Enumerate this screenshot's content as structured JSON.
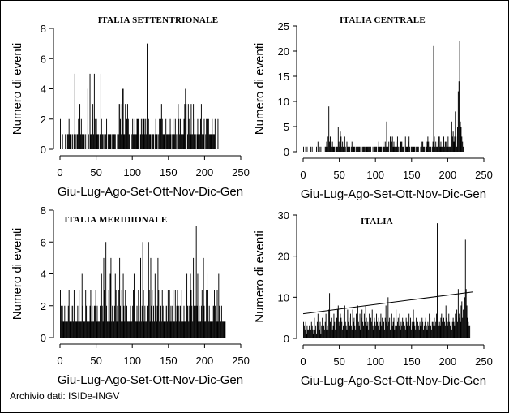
{
  "source_note": "Archivio dati: ISIDe-INGV",
  "chart_data": [
    {
      "type": "bar",
      "title": "ITALIA SETTENTRIONALE",
      "xlabel": "Giu-Lug-Ago-Set-Ott-Nov-Dic-Gen",
      "ylabel": "Numero di eventi",
      "xlim": [
        0,
        250
      ],
      "ylim": [
        0,
        8
      ],
      "xticks": [
        0,
        50,
        100,
        150,
        200,
        250
      ],
      "yticks": [
        0,
        2,
        4,
        6,
        8
      ],
      "values": [
        2,
        0,
        0,
        1,
        0,
        0,
        0,
        1,
        1,
        0,
        1,
        1,
        2,
        1,
        1,
        1,
        0,
        1,
        0,
        1,
        5,
        1,
        0,
        1,
        1,
        2,
        3,
        3,
        1,
        2,
        1,
        1,
        1,
        1,
        0,
        1,
        0,
        0,
        4,
        1,
        0,
        5,
        1,
        1,
        2,
        3,
        1,
        5,
        2,
        1,
        2,
        1,
        1,
        1,
        0,
        1,
        5,
        2,
        1,
        1,
        0,
        1,
        1,
        1,
        2,
        0,
        1,
        1,
        1,
        1,
        1,
        0,
        1,
        1,
        1,
        1,
        1,
        0,
        0,
        1,
        3,
        1,
        3,
        2,
        1,
        3,
        4,
        4,
        1,
        1,
        3,
        2,
        2,
        3,
        2,
        1,
        1,
        0,
        0,
        1,
        2,
        1,
        1,
        2,
        1,
        1,
        2,
        2,
        2,
        1,
        0,
        1,
        2,
        1,
        2,
        2,
        2,
        1,
        2,
        1,
        7,
        1,
        2,
        1,
        1,
        1,
        0,
        1,
        1,
        1,
        0,
        1,
        2,
        1,
        1,
        0,
        1,
        2,
        3,
        2,
        3,
        2,
        1,
        1,
        1,
        0,
        2,
        1,
        1,
        1,
        1,
        1,
        2,
        1,
        0,
        1,
        2,
        1,
        1,
        2,
        1,
        0,
        1,
        3,
        2,
        1,
        2,
        1,
        1,
        1,
        1,
        2,
        3,
        4,
        3,
        0,
        1,
        3,
        2,
        1,
        1,
        3,
        1,
        1,
        3,
        1,
        2,
        1,
        0,
        1,
        2,
        1,
        1,
        1,
        2,
        3,
        1,
        1,
        1,
        2,
        0,
        1,
        2,
        1,
        2,
        2,
        1,
        1,
        1,
        1,
        2,
        1,
        1,
        1,
        2,
        0,
        0,
        0,
        2
      ]
    },
    {
      "type": "bar",
      "title": "ITALIA CENTRALE",
      "xlabel": "Giu-Lug-Ago-Set-Ott-Nov-Dic-Gen",
      "ylabel": "Numero di eventi",
      "xlim": [
        0,
        250
      ],
      "ylim": [
        0,
        25
      ],
      "xticks": [
        0,
        50,
        100,
        150,
        200,
        250
      ],
      "yticks": [
        0,
        5,
        10,
        15,
        20,
        25
      ],
      "values": [
        1,
        0,
        0,
        1,
        0,
        1,
        0,
        0,
        0,
        1,
        1,
        0,
        1,
        0,
        0,
        0,
        0,
        0,
        1,
        0,
        2,
        0,
        1,
        0,
        1,
        0,
        0,
        1,
        0,
        0,
        1,
        1,
        2,
        1,
        3,
        9,
        2,
        3,
        2,
        1,
        2,
        1,
        1,
        1,
        0,
        1,
        1,
        1,
        5,
        2,
        1,
        4,
        3,
        1,
        2,
        1,
        1,
        3,
        1,
        0,
        2,
        1,
        1,
        1,
        1,
        0,
        1,
        2,
        1,
        1,
        1,
        1,
        0,
        1,
        2,
        1,
        1,
        1,
        1,
        0,
        1,
        0,
        1,
        1,
        1,
        1,
        0,
        1,
        1,
        1,
        1,
        1,
        1,
        1,
        0,
        0,
        1,
        0,
        1,
        1,
        1,
        1,
        0,
        1,
        2,
        1,
        1,
        1,
        1,
        0,
        2,
        1,
        1,
        2,
        1,
        6,
        1,
        1,
        2,
        0,
        3,
        1,
        2,
        3,
        1,
        2,
        1,
        1,
        2,
        1,
        3,
        1,
        0,
        1,
        2,
        2,
        2,
        1,
        1,
        1,
        0,
        3,
        1,
        1,
        1,
        2,
        3,
        1,
        0,
        1,
        1,
        1,
        1,
        1,
        1,
        0,
        1,
        1,
        1,
        1,
        0,
        0,
        1,
        1,
        2,
        2,
        1,
        1,
        0,
        1,
        1,
        2,
        3,
        2,
        1,
        1,
        1,
        0,
        1,
        2,
        21,
        3,
        1,
        2,
        1,
        1,
        2,
        3,
        3,
        1,
        2,
        1,
        1,
        2,
        3,
        1,
        2,
        2,
        1,
        1,
        3,
        1,
        1,
        1,
        4,
        6,
        3,
        4,
        2,
        3,
        8,
        3,
        1,
        5,
        12,
        14,
        22,
        6,
        5,
        3,
        2,
        1,
        1
      ]
    },
    {
      "type": "bar",
      "title": "ITALIA MERIDIONALE",
      "xlabel": "Giu-Lug-Ago-Set-Ott-Nov-Dic-Gen",
      "ylabel": "Numero di eventi",
      "xlim": [
        0,
        250
      ],
      "ylim": [
        0,
        8
      ],
      "xticks": [
        0,
        50,
        100,
        150,
        200,
        250
      ],
      "yticks": [
        0,
        2,
        4,
        6,
        8
      ],
      "values": [
        3,
        2,
        1,
        2,
        1,
        1,
        2,
        1,
        1,
        1,
        1,
        2,
        3,
        1,
        1,
        2,
        1,
        2,
        1,
        3,
        1,
        1,
        1,
        1,
        2,
        1,
        3,
        1,
        1,
        1,
        4,
        2,
        1,
        1,
        1,
        3,
        2,
        1,
        1,
        1,
        1,
        2,
        3,
        1,
        2,
        1,
        1,
        2,
        2,
        3,
        1,
        2,
        1,
        1,
        1,
        2,
        3,
        4,
        2,
        1,
        5,
        3,
        1,
        6,
        2,
        1,
        1,
        3,
        1,
        4,
        5,
        1,
        2,
        1,
        1,
        2,
        4,
        3,
        1,
        2,
        1,
        3,
        5,
        2,
        1,
        3,
        1,
        4,
        2,
        1,
        3,
        1,
        2,
        1,
        1,
        1,
        1,
        2,
        1,
        1,
        2,
        3,
        4,
        2,
        1,
        1,
        2,
        1,
        3,
        2,
        1,
        5,
        1,
        2,
        6,
        3,
        1,
        2,
        1,
        1,
        2,
        1,
        6,
        3,
        1,
        5,
        2,
        3,
        1,
        2,
        1,
        4,
        2,
        1,
        2,
        5,
        3,
        1,
        1,
        2,
        1,
        3,
        2,
        1,
        1,
        2,
        1,
        2,
        1,
        3,
        2,
        3,
        1,
        2,
        1,
        2,
        3,
        1,
        1,
        3,
        1,
        2,
        3,
        1,
        2,
        1,
        2,
        1,
        3,
        1,
        1,
        2,
        1,
        1,
        3,
        4,
        2,
        1,
        2,
        1,
        4,
        3,
        2,
        1,
        5,
        2,
        1,
        2,
        7,
        2,
        4,
        1,
        2,
        1,
        1,
        2,
        3,
        1,
        5,
        2,
        1,
        1,
        3,
        4,
        3,
        1,
        2,
        1,
        1,
        1,
        2,
        1,
        2,
        3,
        2,
        1,
        1,
        3,
        1,
        4,
        2,
        1,
        1,
        2,
        1,
        1,
        1,
        1,
        1
      ]
    },
    {
      "type": "bar",
      "title": "ITALIA",
      "xlabel": "Giu-Lug-Ago-Set-Ott-Nov-Dic-Gen",
      "ylabel": "Numero di eventi",
      "xlim": [
        0,
        250
      ],
      "ylim": [
        0,
        30
      ],
      "xticks": [
        0,
        50,
        100,
        150,
        200,
        250
      ],
      "yticks": [
        0,
        10,
        20,
        30
      ],
      "trendline": {
        "x": [
          0,
          235
        ],
        "y": [
          6.0,
          11.3
        ]
      },
      "values": [
        4,
        3,
        2,
        4,
        1,
        3,
        2,
        2,
        3,
        1,
        2,
        4,
        3,
        2,
        1,
        5,
        2,
        3,
        1,
        4,
        6,
        3,
        2,
        4,
        1,
        3,
        5,
        7,
        3,
        2,
        4,
        6,
        2,
        3,
        2,
        7,
        11,
        4,
        3,
        5,
        2,
        3,
        6,
        4,
        2,
        3,
        5,
        7,
        8,
        4,
        3,
        6,
        5,
        4,
        2,
        3,
        6,
        8,
        4,
        3,
        2,
        7,
        4,
        5,
        3,
        6,
        3,
        2,
        7,
        4,
        5,
        3,
        2,
        6,
        4,
        8,
        4,
        3,
        6,
        2,
        5,
        7,
        4,
        3,
        6,
        4,
        8,
        5,
        3,
        4,
        2,
        6,
        3,
        5,
        4,
        7,
        3,
        2,
        5,
        4,
        3,
        6,
        4,
        3,
        5,
        2,
        4,
        6,
        3,
        5,
        3,
        4,
        2,
        5,
        8,
        4,
        3,
        10,
        4,
        5,
        2,
        4,
        6,
        3,
        4,
        5,
        2,
        3,
        7,
        3,
        4,
        5,
        3,
        6,
        2,
        4,
        3,
        5,
        4,
        6,
        3,
        2,
        5,
        4,
        3,
        4,
        6,
        3,
        5,
        2,
        4,
        3,
        7,
        4,
        3,
        2,
        5,
        3,
        4,
        3,
        2,
        4,
        3,
        3,
        5,
        4,
        2,
        3,
        4,
        5,
        3,
        2,
        4,
        3,
        6,
        5,
        3,
        2,
        4,
        4,
        3,
        5,
        3,
        4,
        6,
        28,
        5,
        3,
        4,
        3,
        5,
        6,
        4,
        3,
        5,
        4,
        3,
        8,
        5,
        3,
        4,
        6,
        4,
        3,
        5,
        2,
        4,
        5,
        4,
        3,
        6,
        5,
        7,
        4,
        12,
        6,
        5,
        4,
        8,
        9,
        5,
        7,
        13,
        10,
        24,
        12,
        8,
        5,
        4,
        3,
        3
      ]
    }
  ]
}
